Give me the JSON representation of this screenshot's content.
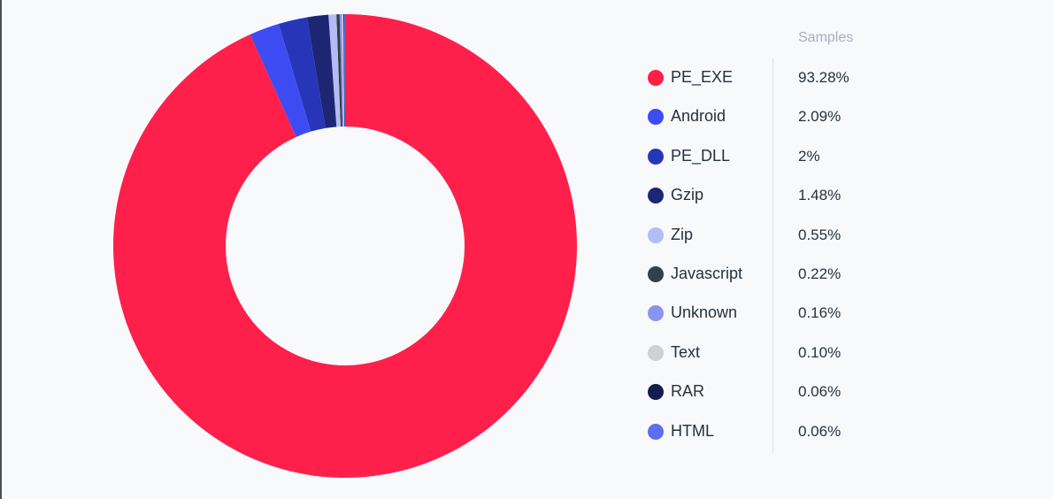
{
  "chart_data": {
    "type": "pie",
    "legend_header": "Samples",
    "donut": true,
    "legend_position": "right",
    "slices": [
      {
        "label": "PE_EXE",
        "value": 93.28,
        "display": "93.28%",
        "color": "#ff1f4b"
      },
      {
        "label": "Android",
        "value": 2.09,
        "display": "2.09%",
        "color": "#3d4cf2"
      },
      {
        "label": "PE_DLL",
        "value": 2,
        "display": "2%",
        "color": "#2736b8"
      },
      {
        "label": "Gzip",
        "value": 1.48,
        "display": "1.48%",
        "color": "#1d2673"
      },
      {
        "label": "Zip",
        "value": 0.55,
        "display": "0.55%",
        "color": "#b3bcf5"
      },
      {
        "label": "Javascript",
        "value": 0.22,
        "display": "0.22%",
        "color": "#343f4b"
      },
      {
        "label": "Unknown",
        "value": 0.16,
        "display": "0.16%",
        "color": "#8b95f0"
      },
      {
        "label": "Text",
        "value": 0.1,
        "display": "0.10%",
        "color": "#cfd1d3"
      },
      {
        "label": "RAR",
        "value": 0.06,
        "display": "0.06%",
        "color": "#141c4f"
      },
      {
        "label": "HTML",
        "value": 0.06,
        "display": "0.06%",
        "color": "#5f6ef0"
      }
    ]
  }
}
